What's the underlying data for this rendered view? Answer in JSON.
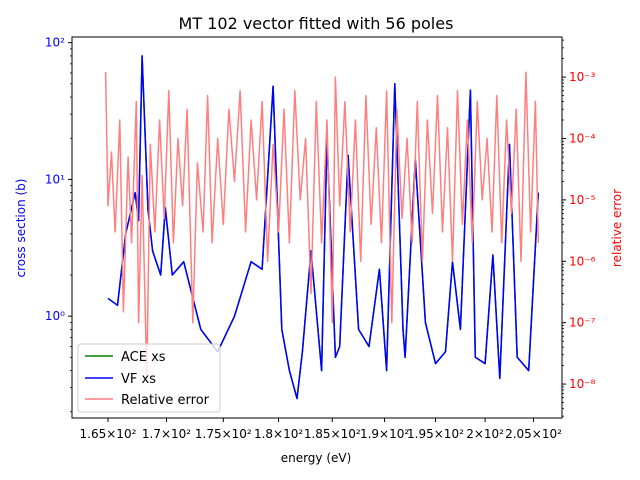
{
  "chart_data": {
    "type": "line",
    "title": "MT 102 vector fitted with 56 poles",
    "xlabel": "energy (eV)",
    "ylabel_left": "cross section (b)",
    "ylabel_right": "relative error",
    "xscale": "log",
    "yscale_left": "log",
    "yscale_right": "log",
    "xlim": [
      162.0,
      208.0
    ],
    "ylim_left": [
      0.18,
      110
    ],
    "ylim_right": [
      2.8e-09,
      0.0045
    ],
    "xticks": [
      {
        "value": 165,
        "label": "1.65×10²"
      },
      {
        "value": 170,
        "label": "1.7×10²"
      },
      {
        "value": 175,
        "label": "1.75×10²"
      },
      {
        "value": 180,
        "label": "1.8×10²"
      },
      {
        "value": 185,
        "label": "1.85×10²"
      },
      {
        "value": 190,
        "label": "1.9×10²"
      },
      {
        "value": 195,
        "label": "1.95×10²"
      },
      {
        "value": 200,
        "label": "2×10²"
      },
      {
        "value": 205,
        "label": "2.05×10²"
      }
    ],
    "yticks_left": [
      {
        "value": 1,
        "label": "10⁰"
      },
      {
        "value": 10,
        "label": "10¹"
      },
      {
        "value": 100,
        "label": "10²"
      }
    ],
    "yticks_right": [
      {
        "value": 1e-08,
        "label": "10⁻⁸"
      },
      {
        "value": 1e-07,
        "label": "10⁻⁷"
      },
      {
        "value": 1e-06,
        "label": "10⁻⁶"
      },
      {
        "value": 1e-05,
        "label": "10⁻⁵"
      },
      {
        "value": 0.0001,
        "label": "10⁻⁴"
      },
      {
        "value": 0.001,
        "label": "10⁻³"
      }
    ],
    "legend": {
      "placement": "lower-left",
      "entries": [
        {
          "label": "ACE xs",
          "color": "#008000"
        },
        {
          "label": "VF xs",
          "color": "#0000ff"
        },
        {
          "label": "Relative error",
          "color": "#ff7f7f"
        }
      ]
    },
    "series": [
      {
        "name": "ACE xs",
        "axis": "left",
        "color": "#008000",
        "x": [
          165.0,
          165.8,
          166.5,
          167.3,
          167.6,
          167.9,
          168.4,
          168.8,
          169.5,
          169.9,
          170.5,
          171.5,
          173.0,
          174.5,
          176.0,
          177.5,
          178.5,
          179.5,
          180.3,
          181.0,
          181.7,
          182.2,
          183.0,
          184.0,
          184.5,
          185.3,
          185.7,
          186.5,
          187.5,
          188.5,
          189.5,
          190.2,
          191.0,
          191.8,
          192.0,
          193.0,
          194.0,
          195.0,
          196.0,
          196.7,
          197.5,
          198.5,
          199.0,
          200.0,
          200.8,
          201.5,
          202.5,
          203.3,
          204.5,
          205.5
        ],
        "y": [
          1.35,
          1.2,
          4.0,
          8.0,
          5.0,
          80.0,
          6.0,
          3.0,
          2.0,
          6.2,
          2.0,
          2.5,
          0.8,
          0.55,
          1.0,
          2.5,
          2.2,
          48.0,
          0.8,
          0.4,
          0.25,
          0.55,
          3.0,
          0.4,
          20.0,
          0.5,
          0.6,
          15.0,
          0.8,
          0.6,
          2.2,
          0.4,
          50.0,
          0.8,
          0.5,
          14.0,
          0.9,
          0.45,
          0.55,
          2.5,
          0.8,
          45.0,
          0.5,
          0.45,
          2.8,
          0.35,
          18.0,
          0.5,
          0.4,
          8.0
        ]
      },
      {
        "name": "VF xs",
        "axis": "left",
        "color": "#0000ff",
        "x": [
          165.0,
          165.8,
          166.5,
          167.3,
          167.6,
          167.9,
          168.4,
          168.8,
          169.5,
          169.9,
          170.5,
          171.5,
          173.0,
          174.5,
          176.0,
          177.5,
          178.5,
          179.5,
          180.3,
          181.0,
          181.7,
          182.2,
          183.0,
          184.0,
          184.5,
          185.3,
          185.7,
          186.5,
          187.5,
          188.5,
          189.5,
          190.2,
          191.0,
          191.8,
          192.0,
          193.0,
          194.0,
          195.0,
          196.0,
          196.7,
          197.5,
          198.5,
          199.0,
          200.0,
          200.8,
          201.5,
          202.5,
          203.3,
          204.5,
          205.5
        ],
        "y": [
          1.35,
          1.2,
          4.0,
          8.0,
          5.0,
          80.0,
          6.0,
          3.0,
          2.0,
          6.2,
          2.0,
          2.5,
          0.8,
          0.55,
          1.0,
          2.5,
          2.2,
          48.0,
          0.8,
          0.4,
          0.25,
          0.55,
          3.0,
          0.4,
          20.0,
          0.5,
          0.6,
          15.0,
          0.8,
          0.6,
          2.2,
          0.4,
          50.0,
          0.8,
          0.5,
          14.0,
          0.9,
          0.45,
          0.55,
          2.5,
          0.8,
          45.0,
          0.5,
          0.45,
          2.8,
          0.35,
          18.0,
          0.5,
          0.4,
          8.0
        ]
      },
      {
        "name": "Relative error",
        "axis": "right",
        "color": "#ff7f7f",
        "x": [
          164.8,
          165.0,
          165.3,
          165.6,
          166.0,
          166.3,
          166.7,
          167.0,
          167.4,
          167.6,
          167.9,
          168.3,
          168.6,
          169.0,
          169.4,
          169.8,
          170.2,
          170.6,
          171.0,
          171.4,
          171.8,
          172.3,
          172.7,
          173.2,
          173.6,
          174.0,
          174.5,
          175.0,
          175.5,
          176.0,
          176.5,
          177.0,
          177.5,
          178.0,
          178.5,
          179.0,
          179.5,
          180.0,
          180.5,
          181.0,
          181.5,
          182.0,
          182.5,
          183.0,
          183.5,
          184.0,
          184.5,
          185.0,
          185.3,
          185.7,
          186.2,
          186.7,
          187.2,
          187.7,
          188.2,
          188.7,
          189.2,
          189.7,
          190.2,
          190.7,
          191.2,
          191.7,
          192.2,
          192.7,
          193.2,
          193.7,
          194.2,
          194.7,
          195.2,
          195.7,
          196.2,
          196.7,
          197.2,
          197.7,
          198.2,
          198.7,
          199.2,
          199.7,
          200.2,
          200.7,
          201.2,
          201.7,
          202.2,
          202.7,
          203.2,
          203.7,
          204.2,
          204.7,
          205.2,
          205.5
        ],
        "y": [
          0.0012,
          8e-06,
          6e-05,
          3e-06,
          0.0002,
          1.5e-07,
          5e-05,
          2e-06,
          0.0004,
          1e-07,
          2.5e-05,
          1.3e-08,
          8e-05,
          3e-06,
          0.0002,
          5e-06,
          0.0006,
          2e-06,
          0.0001,
          8e-06,
          0.0003,
          1e-07,
          4e-05,
          3e-06,
          0.0005,
          2e-06,
          0.0001,
          4e-06,
          0.0003,
          2e-05,
          0.0006,
          3e-06,
          0.0002,
          1e-05,
          0.0004,
          1e-06,
          8e-05,
          3e-06,
          0.0003,
          2e-06,
          0.0006,
          1e-05,
          0.0001,
          3e-07,
          0.0004,
          2e-06,
          0.0002,
          1e-07,
          0.001,
          8e-06,
          0.0004,
          3e-06,
          0.0002,
          1e-06,
          0.0005,
          4e-06,
          0.00015,
          2e-06,
          0.0006,
          1e-07,
          0.0003,
          5e-06,
          0.0001,
          2e-06,
          0.0004,
          1e-06,
          0.0002,
          6e-06,
          0.0005,
          3e-06,
          0.00015,
          1e-06,
          0.0006,
          4e-06,
          0.0002,
          2e-06,
          0.0004,
          1e-05,
          0.0001,
          3e-06,
          0.0005,
          2e-06,
          0.0002,
          6e-06,
          0.0003,
          1e-06,
          0.0012,
          3e-06,
          0.0004,
          2e-06
        ]
      }
    ]
  }
}
